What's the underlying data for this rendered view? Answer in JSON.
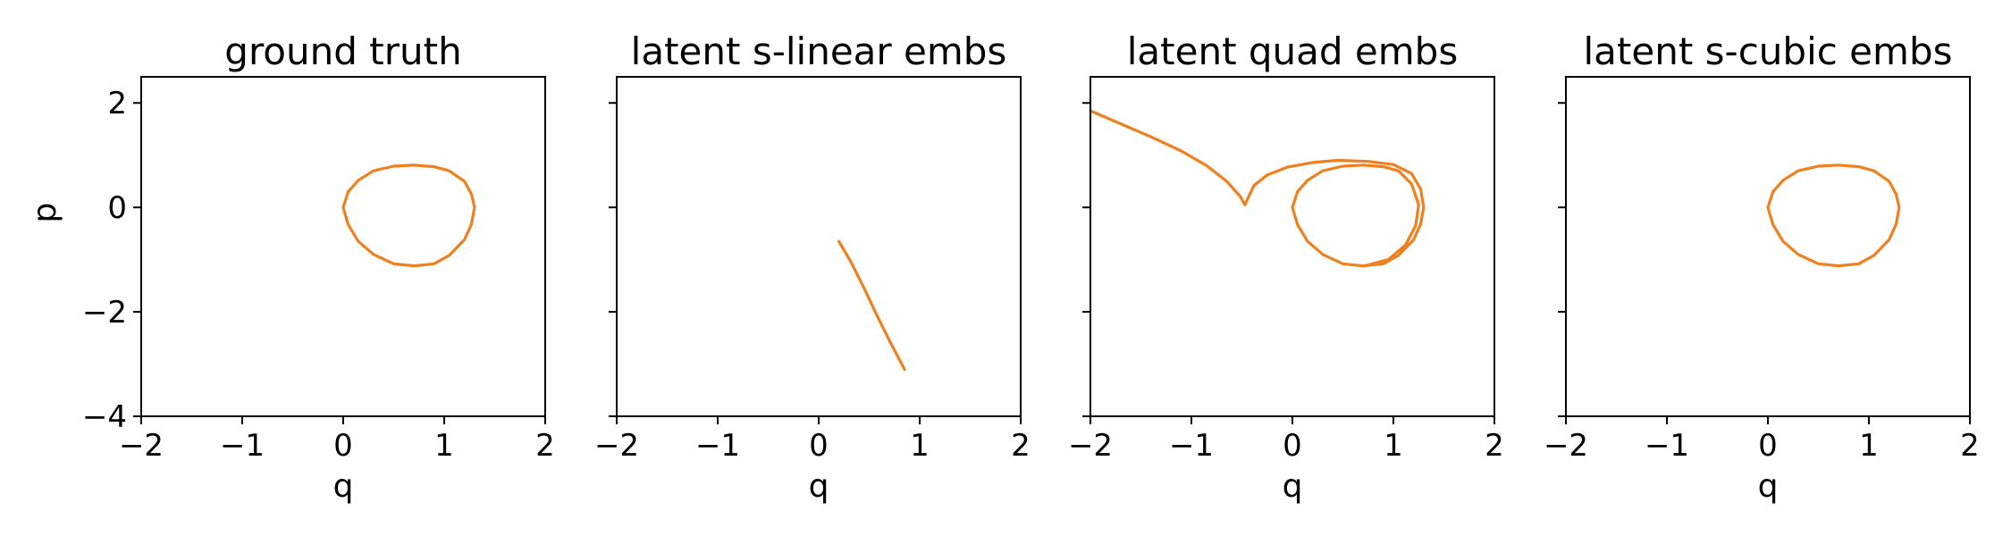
{
  "colors": {
    "series": "#f07f1e"
  },
  "chart_data": [
    {
      "type": "line",
      "title": "ground truth",
      "xlabel": "q",
      "ylabel": "p",
      "xlim": [
        -2,
        2
      ],
      "ylim": [
        -4,
        2.5
      ],
      "xticks": [
        -2,
        -1,
        0,
        1,
        2
      ],
      "yticks": [
        -4,
        -2,
        0,
        2
      ],
      "xtick_labels": [
        "−2",
        "−1",
        "0",
        "1",
        "2"
      ],
      "ytick_labels": [
        "−4",
        "−2",
        "0",
        "2"
      ],
      "grid": false,
      "series": [
        {
          "x": [
            0.0,
            0.05,
            0.15,
            0.3,
            0.5,
            0.7,
            0.9,
            1.05,
            1.2,
            1.27,
            1.3,
            1.27,
            1.2,
            1.05,
            0.9,
            0.7,
            0.5,
            0.3,
            0.15,
            0.05,
            0.0
          ],
          "y": [
            0.0,
            0.3,
            0.52,
            0.7,
            0.79,
            0.81,
            0.78,
            0.7,
            0.5,
            0.25,
            0.0,
            -0.32,
            -0.62,
            -0.92,
            -1.08,
            -1.12,
            -1.08,
            -0.9,
            -0.65,
            -0.33,
            0.0
          ]
        }
      ]
    },
    {
      "type": "line",
      "title": "latent s-linear embs",
      "xlabel": "q",
      "ylabel": "",
      "xlim": [
        -2,
        2
      ],
      "ylim": [
        -4,
        2.5
      ],
      "xticks": [
        -2,
        -1,
        0,
        1,
        2
      ],
      "yticks": [
        -4,
        -2,
        0,
        2
      ],
      "xtick_labels": [
        "−2",
        "−1",
        "0",
        "1",
        "2"
      ],
      "ytick_labels": [],
      "grid": false,
      "series": [
        {
          "x": [
            0.2,
            0.32,
            0.45,
            0.58,
            0.7,
            0.85
          ],
          "y": [
            -0.65,
            -1.05,
            -1.55,
            -2.08,
            -2.55,
            -3.1
          ]
        }
      ]
    },
    {
      "type": "line",
      "title": "latent quad embs",
      "xlabel": "q",
      "ylabel": "",
      "xlim": [
        -2,
        2
      ],
      "ylim": [
        -4,
        2.5
      ],
      "xticks": [
        -2,
        -1,
        0,
        1,
        2
      ],
      "yticks": [
        -4,
        -2,
        0,
        2
      ],
      "xtick_labels": [
        "−2",
        "−1",
        "0",
        "1",
        "2"
      ],
      "ytick_labels": [],
      "grid": false,
      "series": [
        {
          "x": [
            -2.0,
            -1.7,
            -1.4,
            -1.1,
            -0.85,
            -0.65,
            -0.52,
            -0.47,
            -0.44,
            -0.38,
            -0.25,
            -0.05,
            0.2,
            0.45,
            0.75,
            1.0,
            1.18,
            1.27,
            1.3,
            1.27,
            1.2,
            1.05,
            0.9,
            0.7,
            0.5,
            0.3,
            0.15,
            0.05,
            0.0,
            0.05,
            0.15,
            0.3,
            0.5,
            0.7,
            0.9,
            1.05,
            1.18,
            1.25,
            1.22,
            1.12,
            0.95,
            0.72
          ],
          "y": [
            1.85,
            1.6,
            1.35,
            1.08,
            0.8,
            0.5,
            0.22,
            0.05,
            0.18,
            0.42,
            0.62,
            0.77,
            0.86,
            0.9,
            0.88,
            0.82,
            0.65,
            0.35,
            0.0,
            -0.32,
            -0.62,
            -0.92,
            -1.08,
            -1.12,
            -1.08,
            -0.9,
            -0.65,
            -0.33,
            0.0,
            0.3,
            0.52,
            0.7,
            0.79,
            0.81,
            0.78,
            0.7,
            0.45,
            0.05,
            -0.35,
            -0.72,
            -1.0,
            -1.12
          ]
        }
      ]
    },
    {
      "type": "line",
      "title": "latent s-cubic embs",
      "xlabel": "q",
      "ylabel": "",
      "xlim": [
        -2,
        2
      ],
      "ylim": [
        -4,
        2.5
      ],
      "xticks": [
        -2,
        -1,
        0,
        1,
        2
      ],
      "yticks": [
        -4,
        -2,
        0,
        2
      ],
      "xtick_labels": [
        "−2",
        "−1",
        "0",
        "1",
        "2"
      ],
      "ytick_labels": [],
      "grid": false,
      "series": [
        {
          "x": [
            0.0,
            0.05,
            0.15,
            0.3,
            0.5,
            0.7,
            0.9,
            1.05,
            1.2,
            1.27,
            1.3,
            1.27,
            1.2,
            1.05,
            0.9,
            0.7,
            0.5,
            0.3,
            0.15,
            0.05,
            0.0
          ],
          "y": [
            0.0,
            0.3,
            0.52,
            0.7,
            0.79,
            0.81,
            0.78,
            0.7,
            0.5,
            0.25,
            0.0,
            -0.32,
            -0.62,
            -0.92,
            -1.08,
            -1.12,
            -1.08,
            -0.9,
            -0.65,
            -0.33,
            0.0
          ]
        }
      ]
    }
  ]
}
